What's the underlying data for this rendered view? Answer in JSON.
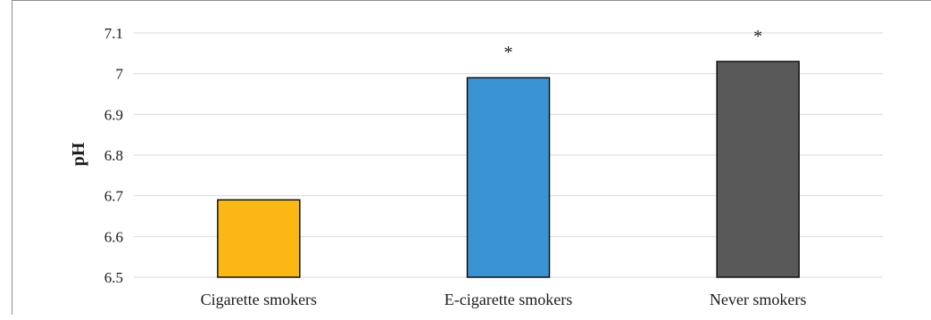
{
  "chart_data": {
    "type": "bar",
    "title": "",
    "xlabel": "",
    "ylabel": "pH",
    "ylim": [
      6.5,
      7.1
    ],
    "yticks": [
      "6.5",
      "6.6",
      "6.7",
      "6.8",
      "6.9",
      "7",
      "7.1"
    ],
    "grid": true,
    "categories": [
      "Cigarette smokers",
      "E-cigarette smokers",
      "Never smokers"
    ],
    "values": [
      6.69,
      6.99,
      7.03
    ],
    "colors": [
      "#fbb714",
      "#3a93d3",
      "#595959"
    ],
    "annotations": [
      "",
      "*",
      "*"
    ]
  }
}
